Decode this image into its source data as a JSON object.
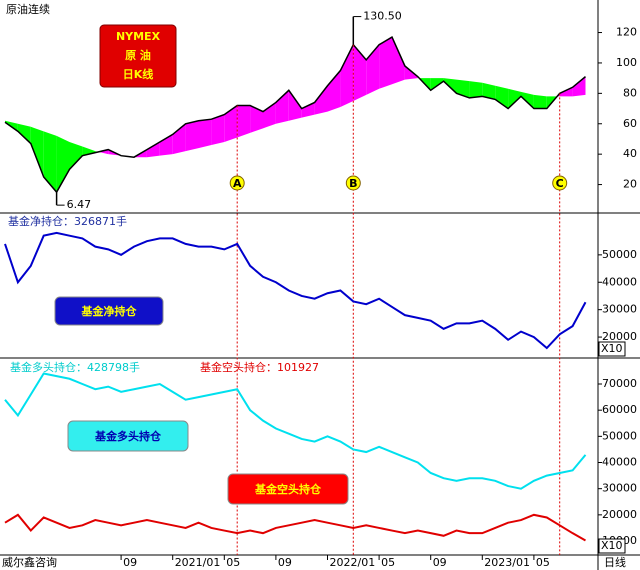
{
  "chart_data": [
    {
      "type": "line",
      "title": "原油连续",
      "badge": [
        "NYMEX",
        "原 油",
        "日K线"
      ],
      "ylim": [
        1.3,
        141.4
      ],
      "yticks": [
        20,
        40,
        60,
        80,
        100,
        120
      ],
      "series": [
        {
          "color": "#000000",
          "values": [
            61,
            55,
            47,
            25,
            15,
            30,
            39,
            41,
            43,
            39,
            38,
            43,
            48,
            53,
            60,
            62,
            63,
            66,
            72,
            72,
            68,
            74,
            82,
            70,
            74,
            85,
            95,
            112,
            102,
            112,
            117,
            98,
            91,
            82,
            88,
            80,
            77,
            78,
            76,
            70,
            78,
            70,
            70,
            80,
            84,
            91
          ]
        },
        {
          "values": [
            62,
            60,
            58,
            55,
            52,
            48,
            45,
            42,
            40,
            39,
            38,
            38,
            39,
            40,
            42,
            44,
            46,
            48,
            51,
            54,
            57,
            60,
            62,
            64,
            66,
            68,
            71,
            75,
            79,
            83,
            86,
            89,
            90,
            90,
            90,
            89,
            88,
            87,
            85,
            83,
            81,
            79,
            78,
            78,
            78,
            79
          ]
        }
      ],
      "band_colors": {
        "above": "#ff00ff",
        "below": "#00ff00"
      },
      "annotations": [
        {
          "label": "130.50",
          "value": 130.5,
          "at": 27
        },
        {
          "label": "6.47",
          "value": 6.47,
          "at": 4
        }
      ],
      "markers": [
        {
          "label": "A",
          "at": 18
        },
        {
          "label": "B",
          "at": 27
        },
        {
          "label": "C",
          "at": 43
        }
      ],
      "marker_color": "#ffff00",
      "guide_color": "#dd0000"
    },
    {
      "type": "line",
      "scale_label": "X10",
      "ylim": [
        12364,
        65273
      ],
      "yticks": [
        20000,
        30000,
        40000,
        50000
      ],
      "series": [
        {
          "title": "基金净持仓：326871手",
          "label": "基金净持仓",
          "color": "#0000cc",
          "values": [
            54000,
            40000,
            46000,
            57000,
            58000,
            57000,
            56000,
            53000,
            52000,
            50000,
            53000,
            55000,
            56000,
            56000,
            54000,
            53000,
            53000,
            52000,
            54000,
            46000,
            42000,
            40000,
            37000,
            35000,
            34000,
            36000,
            37000,
            33000,
            32000,
            34000,
            31000,
            28000,
            27000,
            26000,
            23000,
            25000,
            25000,
            26000,
            23000,
            19000,
            22000,
            20000,
            16000,
            21000,
            24000,
            32700
          ]
        }
      ]
    },
    {
      "type": "line",
      "scale_label": "X10",
      "source": "威尔鑫咨询",
      "period_label": "日线",
      "ylim": [
        4657,
        79936
      ],
      "yticks": [
        10000,
        20000,
        30000,
        40000,
        50000,
        60000,
        70000
      ],
      "categories": [
        null,
        null,
        null,
        null,
        null,
        null,
        null,
        null,
        null,
        "09",
        null,
        null,
        null,
        "2021/01",
        null,
        null,
        null,
        "05",
        null,
        null,
        null,
        "09",
        null,
        null,
        null,
        "2022/01",
        null,
        null,
        null,
        "05",
        null,
        null,
        null,
        "09",
        null,
        null,
        null,
        "2023/01",
        null,
        null,
        null,
        "05",
        null,
        null,
        null,
        null
      ],
      "series": [
        {
          "title": "基金多头持仓：428798手",
          "label": "基金多头持仓",
          "color": "#00e0ee",
          "values": [
            64000,
            58000,
            66000,
            74000,
            73000,
            72000,
            70000,
            68000,
            69000,
            67000,
            68000,
            69000,
            70000,
            67000,
            64000,
            65000,
            66000,
            67000,
            68000,
            60000,
            56000,
            53000,
            51000,
            49000,
            48000,
            50000,
            48000,
            45000,
            44000,
            46000,
            44000,
            42000,
            40000,
            36000,
            34000,
            33000,
            34000,
            34000,
            33000,
            31000,
            30000,
            33000,
            35000,
            36000,
            37000,
            42900
          ]
        },
        {
          "title": "基金空头持仓：101927",
          "label": "基金空头持仓",
          "color": "#e00000",
          "values": [
            17000,
            20000,
            14000,
            19000,
            17000,
            15000,
            16000,
            18000,
            17000,
            16000,
            17000,
            18000,
            17000,
            16000,
            15000,
            17000,
            15000,
            14000,
            13000,
            14000,
            13000,
            15000,
            16000,
            17000,
            18000,
            17000,
            16000,
            15000,
            16000,
            15000,
            14000,
            13000,
            14000,
            13000,
            12000,
            14000,
            13000,
            13000,
            15000,
            17000,
            18000,
            20000,
            19000,
            16000,
            13000,
            10200
          ]
        }
      ]
    }
  ]
}
